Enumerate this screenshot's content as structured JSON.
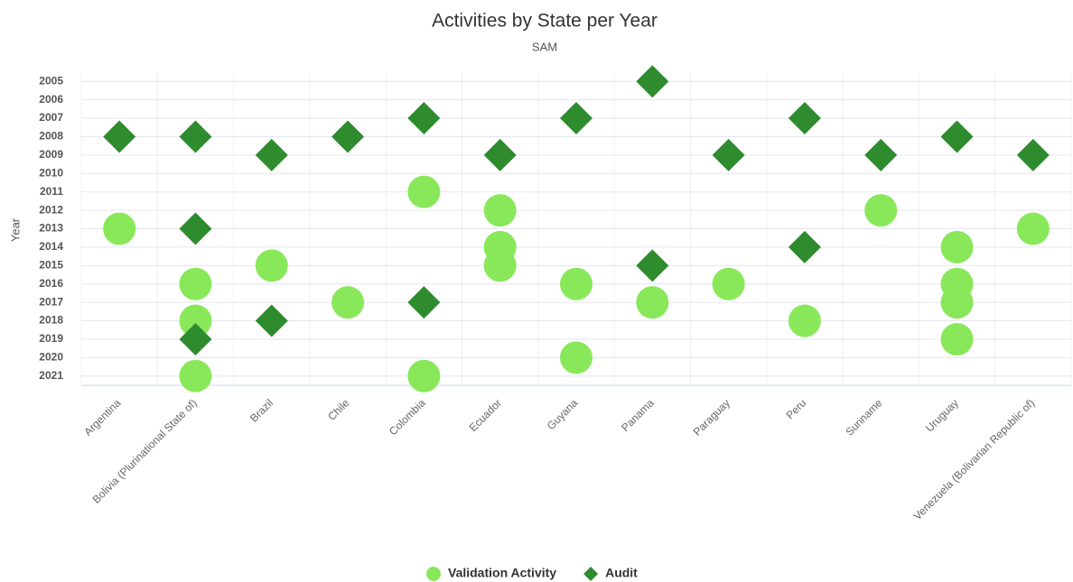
{
  "chart_data": {
    "type": "scatter",
    "title": "Activities by State per Year",
    "subtitle": "SAM",
    "y_label": "Year",
    "categories": [
      "Argentina",
      "Bolivia (Plurinational State of)",
      "Brazil",
      "Chile",
      "Colombia",
      "Ecuador",
      "Guyana",
      "Panama",
      "Paraguay",
      "Peru",
      "Suriname",
      "Uruguay",
      "Venezuela (Bolivarian Republic of)"
    ],
    "ylim": [
      2004.5,
      2021.5
    ],
    "y_inverted": true,
    "yticks": [
      2005,
      2006,
      2007,
      2008,
      2009,
      2010,
      2011,
      2012,
      2013,
      2014,
      2015,
      2016,
      2017,
      2018,
      2019,
      2020,
      2021
    ],
    "grid": true,
    "legend": "bottom",
    "series": [
      {
        "name": "Validation Activity",
        "color": "#88e85a",
        "marker": "circle",
        "x": [
          "Argentina",
          "Bolivia (Plurinational State of)",
          "Bolivia (Plurinational State of)",
          "Bolivia (Plurinational State of)",
          "Brazil",
          "Chile",
          "Colombia",
          "Colombia",
          "Ecuador",
          "Ecuador",
          "Ecuador",
          "Guyana",
          "Guyana",
          "Panama",
          "Paraguay",
          "Peru",
          "Suriname",
          "Uruguay",
          "Uruguay",
          "Uruguay",
          "Uruguay",
          "Venezuela (Bolivarian Republic of)"
        ],
        "values": [
          2013,
          2016,
          2018,
          2021,
          2015,
          2017,
          2011,
          2021,
          2012,
          2014,
          2015,
          2016,
          2020,
          2017,
          2016,
          2018,
          2012,
          2014,
          2016,
          2017,
          2019,
          2013
        ]
      },
      {
        "name": "Audit",
        "color": "#2e8b2e",
        "marker": "diamond",
        "x": [
          "Argentina",
          "Bolivia (Plurinational State of)",
          "Bolivia (Plurinational State of)",
          "Bolivia (Plurinational State of)",
          "Brazil",
          "Brazil",
          "Chile",
          "Colombia",
          "Colombia",
          "Ecuador",
          "Guyana",
          "Panama",
          "Panama",
          "Paraguay",
          "Peru",
          "Peru",
          "Suriname",
          "Uruguay",
          "Venezuela (Bolivarian Republic of)"
        ],
        "values": [
          2008,
          2008,
          2013,
          2019,
          2009,
          2018,
          2008,
          2007,
          2017,
          2009,
          2007,
          2005,
          2015,
          2009,
          2007,
          2014,
          2009,
          2008,
          2009
        ]
      }
    ]
  }
}
